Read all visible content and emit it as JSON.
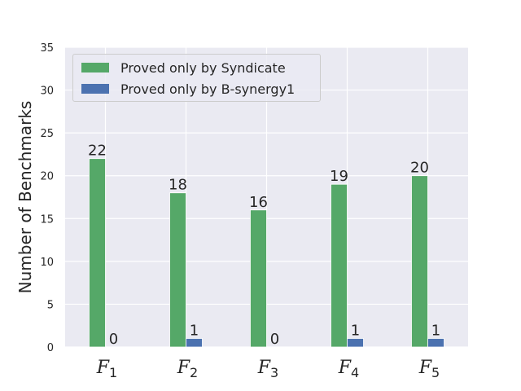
{
  "chart_data": {
    "type": "bar",
    "categories": [
      "F1",
      "F2",
      "F3",
      "F4",
      "F5"
    ],
    "series": [
      {
        "name": "Proved only by Syndicate",
        "values": [
          22,
          18,
          16,
          19,
          20
        ],
        "color": "#55a868"
      },
      {
        "name": "Proved only by B-synergy1",
        "values": [
          0,
          1,
          0,
          1,
          1
        ],
        "color": "#4c72b0"
      }
    ],
    "title": "",
    "xlabel": "",
    "ylabel": "Number of Benchmarks",
    "ylim": [
      0,
      35
    ],
    "yticks": [
      0,
      5,
      10,
      15,
      20,
      25,
      30,
      35
    ],
    "grid": true,
    "legend_placement": "top-left",
    "background_color": "#eaeaf2",
    "category_labels": [
      {
        "letter": "F",
        "sub": "1"
      },
      {
        "letter": "F",
        "sub": "2"
      },
      {
        "letter": "F",
        "sub": "3"
      },
      {
        "letter": "F",
        "sub": "4"
      },
      {
        "letter": "F",
        "sub": "5"
      }
    ]
  }
}
